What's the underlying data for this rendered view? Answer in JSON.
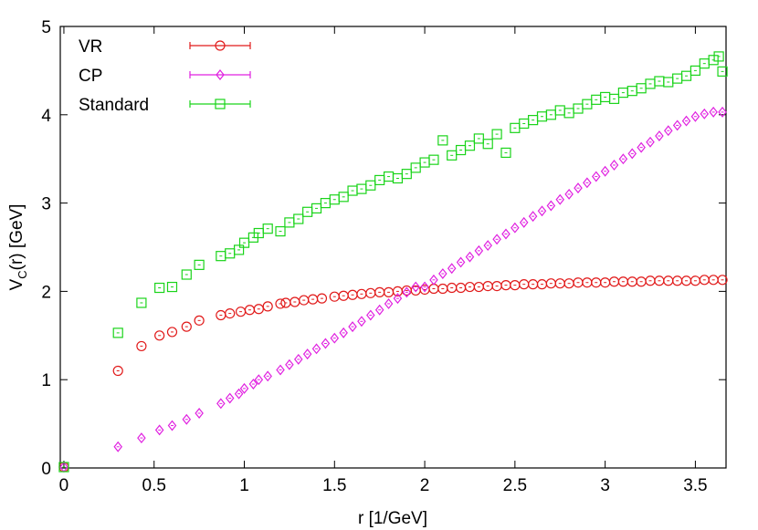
{
  "chart_data": {
    "type": "scatter",
    "title": "",
    "xlabel": "r [1/GeV]",
    "ylabel": {
      "main": "V",
      "sub": "C",
      "rest": "(r) [GeV]"
    },
    "xlim": [
      -0.02,
      3.67
    ],
    "ylim": [
      0,
      5
    ],
    "xticks": [
      {
        "v": 0,
        "label": "0"
      },
      {
        "v": 0.5,
        "label": "0.5"
      },
      {
        "v": 1,
        "label": "1"
      },
      {
        "v": 1.5,
        "label": "1.5"
      },
      {
        "v": 2,
        "label": "2"
      },
      {
        "v": 2.5,
        "label": "2.5"
      },
      {
        "v": 3,
        "label": "3"
      },
      {
        "v": 3.5,
        "label": "3.5"
      }
    ],
    "yticks": [
      {
        "v": 0,
        "label": "0"
      },
      {
        "v": 1,
        "label": "1"
      },
      {
        "v": 2,
        "label": "2"
      },
      {
        "v": 3,
        "label": "3"
      },
      {
        "v": 4,
        "label": "4"
      },
      {
        "v": 5,
        "label": "5"
      }
    ],
    "grid": false,
    "legend_position": "top-left",
    "series": [
      {
        "name": "VR",
        "color": "#e11a1a",
        "marker": "circle",
        "x": [
          0,
          0.3,
          0.43,
          0.53,
          0.6,
          0.68,
          0.75,
          0.87,
          0.92,
          0.98,
          1.03,
          1.08,
          1.13,
          1.2,
          1.23,
          1.28,
          1.33,
          1.38,
          1.43,
          1.5,
          1.55,
          1.6,
          1.65,
          1.7,
          1.75,
          1.8,
          1.85,
          1.9,
          1.95,
          2.0,
          2.05,
          2.1,
          2.15,
          2.2,
          2.25,
          2.3,
          2.35,
          2.4,
          2.45,
          2.5,
          2.55,
          2.6,
          2.65,
          2.7,
          2.75,
          2.8,
          2.85,
          2.9,
          2.95,
          3.0,
          3.05,
          3.1,
          3.15,
          3.2,
          3.25,
          3.3,
          3.35,
          3.4,
          3.45,
          3.5,
          3.55,
          3.6,
          3.65
        ],
        "y": [
          0.01,
          1.1,
          1.38,
          1.5,
          1.54,
          1.6,
          1.67,
          1.73,
          1.75,
          1.77,
          1.79,
          1.8,
          1.83,
          1.86,
          1.87,
          1.88,
          1.9,
          1.91,
          1.92,
          1.94,
          1.95,
          1.96,
          1.97,
          1.98,
          1.99,
          1.99,
          2.0,
          2.01,
          2.01,
          2.02,
          2.03,
          2.03,
          2.04,
          2.04,
          2.05,
          2.05,
          2.06,
          2.06,
          2.07,
          2.07,
          2.08,
          2.08,
          2.08,
          2.09,
          2.09,
          2.09,
          2.1,
          2.1,
          2.1,
          2.1,
          2.11,
          2.11,
          2.11,
          2.11,
          2.12,
          2.12,
          2.12,
          2.12,
          2.12,
          2.12,
          2.13,
          2.13,
          2.13
        ]
      },
      {
        "name": "CP",
        "color": "#e020e0",
        "marker": "diamond",
        "x": [
          0,
          0.3,
          0.43,
          0.53,
          0.6,
          0.68,
          0.75,
          0.87,
          0.92,
          0.97,
          1.0,
          1.05,
          1.08,
          1.13,
          1.2,
          1.25,
          1.3,
          1.35,
          1.4,
          1.45,
          1.5,
          1.55,
          1.6,
          1.65,
          1.7,
          1.75,
          1.8,
          1.85,
          1.9,
          1.95,
          2.0,
          2.05,
          2.1,
          2.15,
          2.2,
          2.25,
          2.3,
          2.35,
          2.4,
          2.45,
          2.5,
          2.55,
          2.6,
          2.65,
          2.7,
          2.75,
          2.8,
          2.85,
          2.9,
          2.95,
          3.0,
          3.05,
          3.1,
          3.15,
          3.2,
          3.25,
          3.3,
          3.35,
          3.4,
          3.45,
          3.5,
          3.55,
          3.6,
          3.65
        ],
        "y": [
          0.01,
          0.24,
          0.34,
          0.43,
          0.48,
          0.55,
          0.62,
          0.73,
          0.79,
          0.84,
          0.9,
          0.95,
          1.0,
          1.04,
          1.11,
          1.17,
          1.23,
          1.29,
          1.35,
          1.41,
          1.47,
          1.53,
          1.6,
          1.66,
          1.73,
          1.79,
          1.86,
          1.92,
          1.99,
          2.05,
          2.05,
          2.13,
          2.2,
          2.26,
          2.33,
          2.39,
          2.46,
          2.52,
          2.59,
          2.65,
          2.72,
          2.78,
          2.85,
          2.91,
          2.97,
          3.04,
          3.1,
          3.17,
          3.23,
          3.3,
          3.36,
          3.43,
          3.5,
          3.56,
          3.63,
          3.69,
          3.76,
          3.82,
          3.88,
          3.93,
          3.98,
          4.01,
          4.03,
          4.03
        ]
      },
      {
        "name": "Standard",
        "color": "#1ad41a",
        "marker": "square",
        "x": [
          0,
          0.3,
          0.43,
          0.53,
          0.6,
          0.68,
          0.75,
          0.87,
          0.92,
          0.97,
          1.0,
          1.05,
          1.08,
          1.13,
          1.2,
          1.25,
          1.3,
          1.35,
          1.4,
          1.45,
          1.5,
          1.55,
          1.6,
          1.65,
          1.7,
          1.75,
          1.8,
          1.85,
          1.9,
          1.95,
          2.0,
          2.05,
          2.1,
          2.15,
          2.2,
          2.25,
          2.3,
          2.35,
          2.4,
          2.45,
          2.5,
          2.55,
          2.6,
          2.65,
          2.7,
          2.75,
          2.8,
          2.85,
          2.9,
          2.95,
          3.0,
          3.05,
          3.1,
          3.15,
          3.2,
          3.25,
          3.3,
          3.35,
          3.4,
          3.45,
          3.5,
          3.55,
          3.6,
          3.63,
          3.65
        ],
        "y": [
          0.01,
          1.53,
          1.87,
          2.04,
          2.05,
          2.19,
          2.3,
          2.4,
          2.43,
          2.47,
          2.55,
          2.61,
          2.66,
          2.71,
          2.68,
          2.78,
          2.82,
          2.9,
          2.94,
          3.0,
          3.04,
          3.07,
          3.14,
          3.16,
          3.2,
          3.26,
          3.3,
          3.28,
          3.33,
          3.4,
          3.46,
          3.49,
          3.71,
          3.54,
          3.6,
          3.65,
          3.73,
          3.67,
          3.78,
          3.57,
          3.85,
          3.9,
          3.94,
          3.98,
          4.0,
          4.05,
          4.02,
          4.07,
          4.12,
          4.17,
          4.2,
          4.18,
          4.25,
          4.27,
          4.3,
          4.35,
          4.38,
          4.37,
          4.41,
          4.44,
          4.5,
          4.58,
          4.62,
          4.66,
          4.49
        ]
      }
    ]
  }
}
